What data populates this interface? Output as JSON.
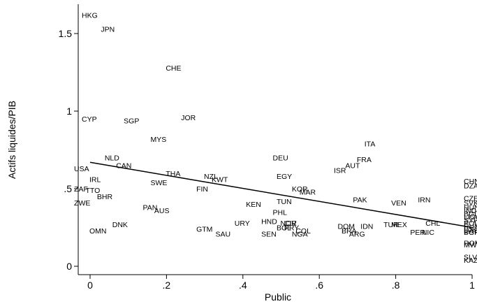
{
  "chart_data": {
    "type": "scatter",
    "title": "",
    "xlabel": "Public",
    "ylabel": "Actifs liquides/PIB",
    "xlim": [
      -0.02,
      1.0
    ],
    "ylim": [
      -0.05,
      1.7
    ],
    "x_ticks": [
      {
        "value": 0,
        "label": "0"
      },
      {
        "value": 0.2,
        "label": ".2"
      },
      {
        "value": 0.4,
        "label": ".4"
      },
      {
        "value": 0.6,
        "label": ".6"
      },
      {
        "value": 0.8,
        "label": ".8"
      },
      {
        "value": 1,
        "label": "1"
      }
    ],
    "y_ticks": [
      {
        "value": 0,
        "label": "0"
      },
      {
        "value": 0.5,
        "label": ".5"
      },
      {
        "value": 1,
        "label": "1"
      },
      {
        "value": 1.5,
        "label": "1.5"
      }
    ],
    "grid": false,
    "legend": "none",
    "fit_line": {
      "x": [
        0,
        1
      ],
      "y": [
        0.67,
        0.25
      ]
    },
    "points": [
      {
        "label": "HKG",
        "x": 0.0,
        "y": 1.62
      },
      {
        "label": "JPN",
        "x": 0.05,
        "y": 1.53
      },
      {
        "label": "CHE",
        "x": 0.22,
        "y": 1.28
      },
      {
        "label": "CYP",
        "x": 0.0,
        "y": 0.95
      },
      {
        "label": "SGP",
        "x": 0.11,
        "y": 0.94
      },
      {
        "label": "JOR",
        "x": 0.26,
        "y": 0.96
      },
      {
        "label": "MYS",
        "x": 0.18,
        "y": 0.82
      },
      {
        "label": "NLD",
        "x": 0.06,
        "y": 0.7
      },
      {
        "label": "CAN",
        "x": 0.09,
        "y": 0.65
      },
      {
        "label": "USA",
        "x": -0.02,
        "y": 0.63
      },
      {
        "label": "THA",
        "x": 0.22,
        "y": 0.6
      },
      {
        "label": "IRL",
        "x": 0.02,
        "y": 0.56
      },
      {
        "label": "SWE",
        "x": 0.18,
        "y": 0.54
      },
      {
        "label": "NZL",
        "x": 0.32,
        "y": 0.58
      },
      {
        "label": "KWT",
        "x": 0.34,
        "y": 0.56
      },
      {
        "label": "FIN",
        "x": 0.3,
        "y": 0.5
      },
      {
        "label": "ZAF",
        "x": -0.02,
        "y": 0.5
      },
      {
        "label": "TTO",
        "x": 0.01,
        "y": 0.49
      },
      {
        "label": "BHR",
        "x": 0.04,
        "y": 0.45
      },
      {
        "label": "ZWE",
        "x": -0.02,
        "y": 0.41
      },
      {
        "label": "PAN",
        "x": 0.16,
        "y": 0.38
      },
      {
        "label": "AUS",
        "x": 0.19,
        "y": 0.36
      },
      {
        "label": "DNK",
        "x": 0.08,
        "y": 0.27
      },
      {
        "label": "OMN",
        "x": 0.02,
        "y": 0.23
      },
      {
        "label": "GTM",
        "x": 0.3,
        "y": 0.24
      },
      {
        "label": "SAU",
        "x": 0.35,
        "y": 0.21
      },
      {
        "label": "URY",
        "x": 0.4,
        "y": 0.28
      },
      {
        "label": "KEN",
        "x": 0.43,
        "y": 0.4
      },
      {
        "label": "DEU",
        "x": 0.5,
        "y": 0.7
      },
      {
        "label": "EGY",
        "x": 0.51,
        "y": 0.58
      },
      {
        "label": "KOR",
        "x": 0.55,
        "y": 0.5
      },
      {
        "label": "MAR",
        "x": 0.57,
        "y": 0.48
      },
      {
        "label": "TUN",
        "x": 0.51,
        "y": 0.42
      },
      {
        "label": "PHL",
        "x": 0.5,
        "y": 0.35
      },
      {
        "label": "HND",
        "x": 0.47,
        "y": 0.29
      },
      {
        "label": "NOR",
        "x": 0.52,
        "y": 0.28
      },
      {
        "label": "CIV",
        "x": 0.53,
        "y": 0.28
      },
      {
        "label": "BOL",
        "x": 0.51,
        "y": 0.25
      },
      {
        "label": "PRY",
        "x": 0.53,
        "y": 0.25
      },
      {
        "label": "COL",
        "x": 0.56,
        "y": 0.23
      },
      {
        "label": "SEN",
        "x": 0.47,
        "y": 0.21
      },
      {
        "label": "NGA",
        "x": 0.55,
        "y": 0.21
      },
      {
        "label": "ISR",
        "x": 0.66,
        "y": 0.62
      },
      {
        "label": "AUT",
        "x": 0.69,
        "y": 0.65
      },
      {
        "label": "FRA",
        "x": 0.72,
        "y": 0.69
      },
      {
        "label": "ITA",
        "x": 0.74,
        "y": 0.79
      },
      {
        "label": "PAK",
        "x": 0.71,
        "y": 0.43
      },
      {
        "label": "DOM",
        "x": 0.67,
        "y": 0.26
      },
      {
        "label": "BRA",
        "x": 0.68,
        "y": 0.23
      },
      {
        "label": "ARG",
        "x": 0.7,
        "y": 0.21
      },
      {
        "label": "IDN",
        "x": 0.73,
        "y": 0.26
      },
      {
        "label": "VEN",
        "x": 0.81,
        "y": 0.41
      },
      {
        "label": "TUR",
        "x": 0.79,
        "y": 0.27
      },
      {
        "label": "MEX",
        "x": 0.81,
        "y": 0.27
      },
      {
        "label": "IRN",
        "x": 0.88,
        "y": 0.43
      },
      {
        "label": "CHL",
        "x": 0.9,
        "y": 0.28
      },
      {
        "label": "PER",
        "x": 0.86,
        "y": 0.22
      },
      {
        "label": "NIC",
        "x": 0.89,
        "y": 0.22
      },
      {
        "label": "CHN",
        "x": 1.0,
        "y": 0.55
      },
      {
        "label": "DZA",
        "x": 1.0,
        "y": 0.52
      },
      {
        "label": "CZE",
        "x": 1.0,
        "y": 0.44
      },
      {
        "label": "SVK",
        "x": 1.0,
        "y": 0.41
      },
      {
        "label": "HUN",
        "x": 1.0,
        "y": 0.38
      },
      {
        "label": "IND",
        "x": 1.0,
        "y": 0.36
      },
      {
        "label": "BGD",
        "x": 1.0,
        "y": 0.34
      },
      {
        "label": "LKA",
        "x": 1.0,
        "y": 0.32
      },
      {
        "label": "SYR",
        "x": 1.0,
        "y": 0.3
      },
      {
        "label": "POL",
        "x": 1.0,
        "y": 0.28
      },
      {
        "label": "RUS",
        "x": 1.0,
        "y": 0.26
      },
      {
        "label": "EST",
        "x": 1.0,
        "y": 0.24
      },
      {
        "label": "LVA",
        "x": 1.0,
        "y": 0.23
      },
      {
        "label": "BGR",
        "x": 1.0,
        "y": 0.22
      },
      {
        "label": "ROM",
        "x": 1.0,
        "y": 0.15
      },
      {
        "label": "MWI",
        "x": 1.0,
        "y": 0.14
      },
      {
        "label": "SLV",
        "x": 1.0,
        "y": 0.06
      },
      {
        "label": "KAZ",
        "x": 1.0,
        "y": 0.04
      }
    ]
  }
}
